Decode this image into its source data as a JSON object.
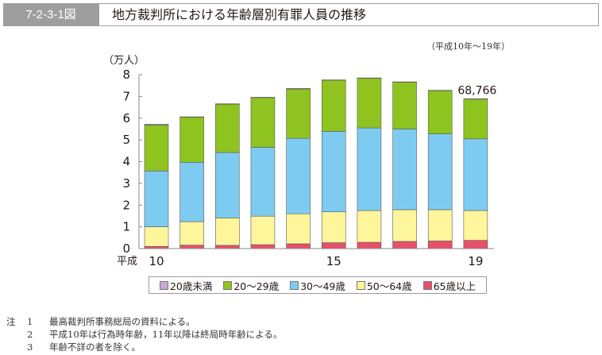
{
  "header": {
    "figure_number": "7-2-3-1図",
    "title": "地方裁判所における年齢層別有罪人員の推移",
    "period": "（平成10年～19年）"
  },
  "chart_data": {
    "type": "bar",
    "stacked": true,
    "title": "地方裁判所における年齢層別有罪人員の推移",
    "ylabel": "（万人）",
    "xlabel": "",
    "ylim": [
      0,
      8
    ],
    "yticks": [
      "0",
      "1",
      "2",
      "3",
      "4",
      "5",
      "6",
      "7",
      "8"
    ],
    "x_era_label": "平成",
    "categories": [
      "10",
      "11",
      "12",
      "13",
      "14",
      "15",
      "16",
      "17",
      "18",
      "19"
    ],
    "x_tick_labels": [
      "10",
      "",
      "",
      "",
      "",
      "15",
      "",
      "",
      "",
      "19"
    ],
    "grid": false,
    "legend_position": "bottom",
    "series": [
      {
        "name": "65歳以上",
        "color": "#e8506a",
        "values": [
          0.1,
          0.16,
          0.15,
          0.18,
          0.22,
          0.27,
          0.29,
          0.33,
          0.35,
          0.38
        ]
      },
      {
        "name": "50～64歳",
        "color": "#fff59b",
        "values": [
          0.9,
          1.08,
          1.26,
          1.31,
          1.38,
          1.42,
          1.46,
          1.46,
          1.44,
          1.37
        ]
      },
      {
        "name": "30～49歳",
        "color": "#7ecbf1",
        "values": [
          2.57,
          2.73,
          3.01,
          3.17,
          3.47,
          3.7,
          3.8,
          3.71,
          3.49,
          3.3
        ]
      },
      {
        "name": "20～29歳",
        "color": "#8fc31f",
        "values": [
          2.11,
          2.07,
          2.22,
          2.29,
          2.27,
          2.36,
          2.29,
          2.16,
          1.99,
          1.83
        ]
      },
      {
        "name": "20歳未満",
        "color": "#c8a8d4",
        "values": [
          0.04,
          0.02,
          0.02,
          0.01,
          0.03,
          0.01,
          0.01,
          0.01,
          0.01,
          0.01
        ]
      }
    ],
    "totals": [
      5.72,
      6.06,
      6.66,
      6.96,
      7.37,
      7.76,
      7.85,
      7.67,
      7.28,
      6.89
    ],
    "annotations": [
      {
        "category": "19",
        "text": "68,766"
      }
    ],
    "legend": [
      {
        "label": "20歳未満",
        "color": "#c8a8d4"
      },
      {
        "label": "20～29歳",
        "color": "#8fc31f"
      },
      {
        "label": "30～49歳",
        "color": "#7ecbf1"
      },
      {
        "label": "50～64歳",
        "color": "#fff59b"
      },
      {
        "label": "65歳以上",
        "color": "#e8506a"
      }
    ]
  },
  "notes": {
    "prefix": "注",
    "items": [
      {
        "num": "1",
        "text": "最高裁判所事務総局の資料による。"
      },
      {
        "num": "2",
        "text": "平成10年は行為時年齢，11年以降は終局時年齢による。"
      },
      {
        "num": "3",
        "text": "年齢不詳の者を除く。"
      }
    ]
  }
}
